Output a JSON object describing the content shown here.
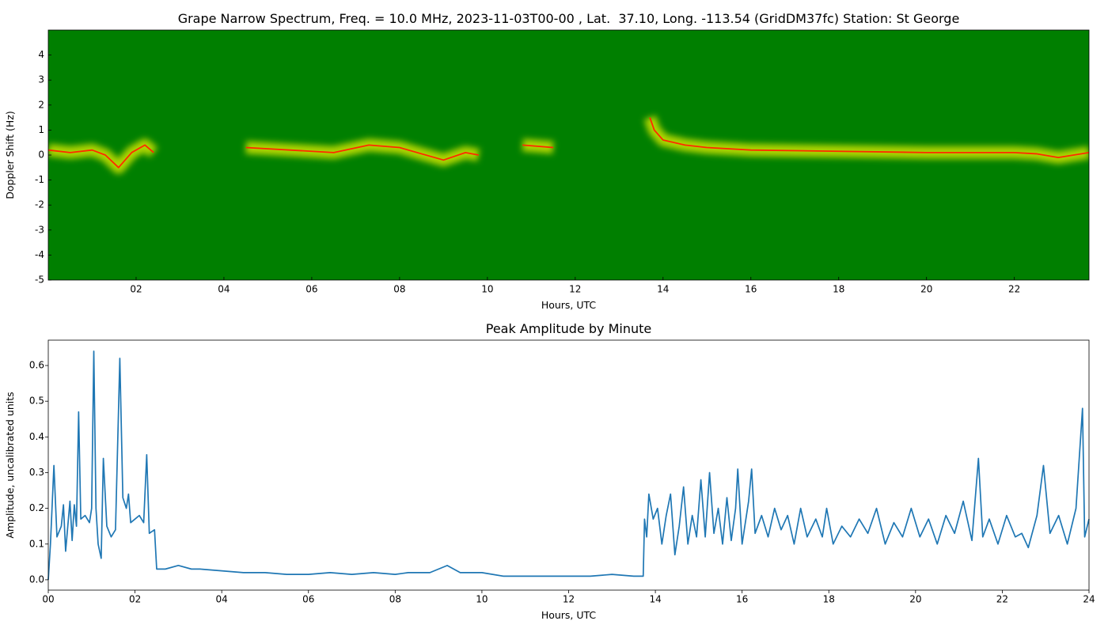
{
  "chart_data": [
    {
      "type": "spectrogram",
      "title": "Grape Narrow Spectrum, Freq. = 10.0 MHz, 2023-11-03T00-00 , Lat.  37.10, Long. -113.54 (GridDM37fc) Station: St George",
      "x_label": "Hours, UTC",
      "y_label": "Doppler Shift (Hz)",
      "xlim": [
        0,
        23.7
      ],
      "ylim": [
        -5,
        5
      ],
      "xticks": [
        {
          "value": 2,
          "label": "02"
        },
        {
          "value": 4,
          "label": "04"
        },
        {
          "value": 6,
          "label": "06"
        },
        {
          "value": 8,
          "label": "08"
        },
        {
          "value": 10,
          "label": "10"
        },
        {
          "value": 12,
          "label": "12"
        },
        {
          "value": 14,
          "label": "14"
        },
        {
          "value": 16,
          "label": "16"
        },
        {
          "value": 18,
          "label": "18"
        },
        {
          "value": 20,
          "label": "20"
        },
        {
          "value": 22,
          "label": "22"
        }
      ],
      "yticks": [
        -5,
        -4,
        -3,
        -2,
        -1,
        0,
        1,
        2,
        3,
        4
      ],
      "background_color": "#007f00",
      "glow_color": "#e8f000",
      "color": "#ff2a00",
      "x": [
        0,
        0.5,
        1,
        1.3,
        1.6,
        1.9,
        2.2,
        2.4,
        2.5,
        4.5,
        5.5,
        6.5,
        7.3,
        8,
        9,
        9.5,
        9.8,
        10.3,
        10.8,
        11.5,
        12,
        13.7,
        13.8,
        14,
        14.5,
        15,
        16,
        18,
        20,
        21,
        22,
        22.5,
        23,
        23.7
      ],
      "values": [
        0.2,
        0.1,
        0.2,
        0,
        -0.5,
        0.1,
        0.4,
        0.1,
        null,
        0.3,
        0.2,
        0.1,
        0.4,
        0.3,
        -0.2,
        0.1,
        0,
        null,
        0.4,
        0.3,
        null,
        1.5,
        1.0,
        0.6,
        0.4,
        0.3,
        0.2,
        0.15,
        0.1,
        0.1,
        0.1,
        0.05,
        -0.1,
        0.1
      ]
    },
    {
      "type": "line",
      "title": "Peak Amplitude by Minute",
      "x_label": "Hours, UTC",
      "y_label": "Amplitude, uncalibrated units",
      "xlim": [
        0,
        24
      ],
      "ylim": [
        -0.029,
        0.671
      ],
      "xticks": [
        {
          "value": 0,
          "label": "00"
        },
        {
          "value": 2,
          "label": "02"
        },
        {
          "value": 4,
          "label": "04"
        },
        {
          "value": 6,
          "label": "06"
        },
        {
          "value": 8,
          "label": "08"
        },
        {
          "value": 10,
          "label": "10"
        },
        {
          "value": 12,
          "label": "12"
        },
        {
          "value": 14,
          "label": "14"
        },
        {
          "value": 16,
          "label": "16"
        },
        {
          "value": 18,
          "label": "18"
        },
        {
          "value": 20,
          "label": "20"
        },
        {
          "value": 22,
          "label": "22"
        },
        {
          "value": 24,
          "label": "24"
        }
      ],
      "yticks": [
        {
          "value": 0,
          "label": "0.0"
        },
        0.1,
        0.2,
        0.3,
        0.4,
        0.5,
        0.6
      ],
      "color": "#1f77b4",
      "x": [
        0,
        0.05,
        0.13,
        0.2,
        0.3,
        0.35,
        0.4,
        0.5,
        0.55,
        0.6,
        0.65,
        0.7,
        0.75,
        0.85,
        0.95,
        1.0,
        1.05,
        1.1,
        1.15,
        1.22,
        1.27,
        1.35,
        1.45,
        1.55,
        1.65,
        1.72,
        1.8,
        1.85,
        1.9,
        2.0,
        2.1,
        2.2,
        2.27,
        2.33,
        2.45,
        2.5,
        2.7,
        3,
        3.3,
        3.5,
        4,
        4.5,
        5,
        5.5,
        6,
        6.5,
        7,
        7.5,
        8,
        8.3,
        8.8,
        9.2,
        9.5,
        10,
        10.5,
        11,
        11.5,
        12,
        12.5,
        13,
        13.5,
        13.72,
        13.75,
        13.8,
        13.85,
        13.95,
        14.05,
        14.15,
        14.25,
        14.35,
        14.45,
        14.55,
        14.65,
        14.75,
        14.85,
        14.95,
        15.05,
        15.15,
        15.25,
        15.35,
        15.45,
        15.55,
        15.65,
        15.75,
        15.85,
        15.9,
        16.0,
        16.15,
        16.22,
        16.3,
        16.45,
        16.6,
        16.75,
        16.9,
        17.05,
        17.2,
        17.35,
        17.5,
        17.7,
        17.85,
        17.95,
        18.1,
        18.3,
        18.5,
        18.7,
        18.9,
        19.1,
        19.3,
        19.5,
        19.7,
        19.9,
        20.1,
        20.3,
        20.5,
        20.7,
        20.9,
        21.1,
        21.3,
        21.45,
        21.55,
        21.7,
        21.9,
        22.1,
        22.3,
        22.45,
        22.6,
        22.8,
        22.95,
        23.1,
        23.3,
        23.5,
        23.7,
        23.85,
        23.9,
        24
      ],
      "values": [
        0.0,
        0.1,
        0.32,
        0.12,
        0.15,
        0.21,
        0.08,
        0.22,
        0.11,
        0.21,
        0.15,
        0.47,
        0.17,
        0.18,
        0.16,
        0.2,
        0.64,
        0.2,
        0.1,
        0.06,
        0.34,
        0.15,
        0.12,
        0.14,
        0.62,
        0.23,
        0.2,
        0.24,
        0.16,
        0.17,
        0.18,
        0.16,
        0.35,
        0.13,
        0.14,
        0.03,
        0.03,
        0.04,
        0.03,
        0.03,
        0.025,
        0.02,
        0.02,
        0.015,
        0.015,
        0.02,
        0.015,
        0.02,
        0.015,
        0.02,
        0.02,
        0.04,
        0.02,
        0.02,
        0.01,
        0.01,
        0.01,
        0.01,
        0.01,
        0.015,
        0.01,
        0.01,
        0.17,
        0.12,
        0.24,
        0.17,
        0.2,
        0.1,
        0.18,
        0.24,
        0.07,
        0.15,
        0.26,
        0.1,
        0.18,
        0.12,
        0.28,
        0.12,
        0.3,
        0.13,
        0.2,
        0.1,
        0.23,
        0.11,
        0.2,
        0.31,
        0.1,
        0.22,
        0.31,
        0.13,
        0.18,
        0.12,
        0.2,
        0.14,
        0.18,
        0.1,
        0.2,
        0.12,
        0.17,
        0.12,
        0.2,
        0.1,
        0.15,
        0.12,
        0.17,
        0.13,
        0.2,
        0.1,
        0.16,
        0.12,
        0.2,
        0.12,
        0.17,
        0.1,
        0.18,
        0.13,
        0.22,
        0.11,
        0.34,
        0.12,
        0.17,
        0.1,
        0.18,
        0.12,
        0.13,
        0.09,
        0.18,
        0.32,
        0.13,
        0.18,
        0.1,
        0.2,
        0.48,
        0.12,
        0.17
      ]
    }
  ]
}
